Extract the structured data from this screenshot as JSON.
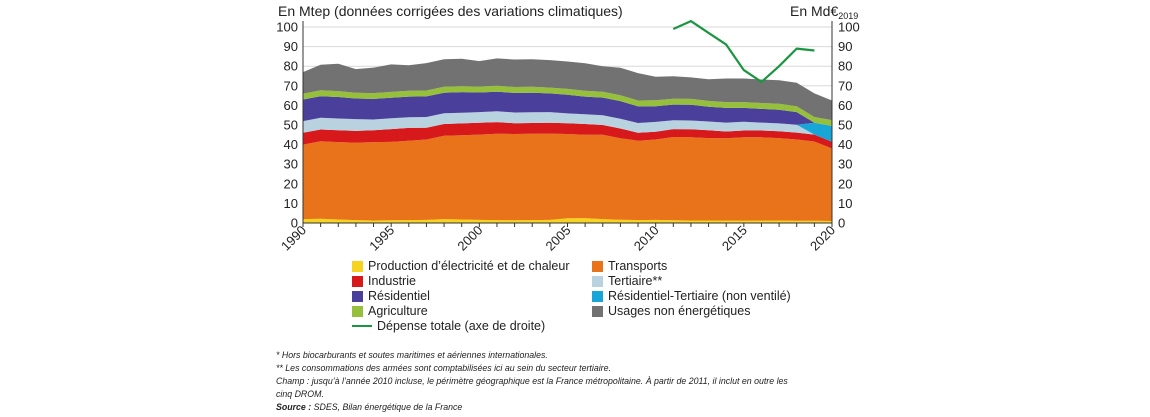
{
  "chart_data": {
    "type": "area",
    "left_axis_label": "En Mtep (données corrigées des variations climatiques)",
    "right_axis_label": "En Md€",
    "right_axis_label_sub": "2019",
    "ylim": [
      0,
      100
    ],
    "y_ticks": [
      "0",
      "10",
      "20",
      "30",
      "40",
      "50",
      "60",
      "70",
      "80",
      "90",
      "100"
    ],
    "x_ticks": [
      "1990",
      "1995",
      "2000",
      "2005",
      "2010",
      "2015",
      "2020"
    ],
    "years": [
      1990,
      1991,
      1992,
      1993,
      1994,
      1995,
      1996,
      1997,
      1998,
      1999,
      2000,
      2001,
      2002,
      2003,
      2004,
      2005,
      2006,
      2007,
      2008,
      2009,
      2010,
      2011,
      2012,
      2013,
      2014,
      2015,
      2016,
      2017,
      2018,
      2019,
      2020
    ],
    "series": [
      {
        "name": "Production d'électricité et de chaleur",
        "color": "#f5d31e",
        "values": [
          2,
          2.2,
          1.8,
          1.5,
          1.3,
          1.4,
          1.5,
          1.6,
          2,
          1.8,
          1.6,
          1.5,
          1.4,
          1.5,
          1.6,
          2.4,
          2.5,
          2,
          1.7,
          1.5,
          1.6,
          1.4,
          1.3,
          1.3,
          1.2,
          1.2,
          1.2,
          1.3,
          1.1,
          1.1,
          1
        ]
      },
      {
        "name": "Transports",
        "color": "#e8731a",
        "values": [
          38,
          39.5,
          39.5,
          39.5,
          40,
          40,
          40.5,
          41,
          42.5,
          43,
          43.5,
          44,
          44,
          44,
          44,
          43,
          42.5,
          43,
          41.5,
          40.5,
          41,
          42.5,
          42.5,
          42,
          42,
          42.5,
          42.5,
          42,
          41.5,
          40.5,
          37
        ]
      },
      {
        "name": "Industrie",
        "color": "#d7191c",
        "values": [
          6,
          6,
          6,
          6,
          6,
          6.5,
          6.5,
          6,
          6,
          6,
          6,
          6,
          5.5,
          5.5,
          5.5,
          5.5,
          5.5,
          5,
          5,
          4,
          4,
          4,
          4,
          4,
          3.5,
          3.5,
          3.5,
          3.5,
          3.5,
          3.5,
          3.5
        ]
      },
      {
        "name": "Tertiaire**",
        "color": "#b8d2e0",
        "values": [
          6,
          6,
          6,
          6,
          5.5,
          5.5,
          5.5,
          5.5,
          5.5,
          5.5,
          5.5,
          5.5,
          5.5,
          5.5,
          5.5,
          5,
          5,
          5,
          5,
          5,
          5,
          4.5,
          4.5,
          4.5,
          4.5,
          4.5,
          4,
          4,
          4,
          0,
          0
        ]
      },
      {
        "name": "Résidentiel-Tertiaire (non ventilé)",
        "color": "#18a6d8",
        "values": [
          0,
          0,
          0,
          0,
          0,
          0,
          0,
          0,
          0,
          0,
          0,
          0,
          0,
          0,
          0,
          0,
          0,
          0,
          0,
          0,
          0,
          0,
          0,
          0,
          0,
          0,
          0,
          0,
          0,
          6,
          8
        ]
      },
      {
        "name": "Résidentiel",
        "color": "#4a3f9b",
        "values": [
          11,
          11,
          11,
          10.5,
          10.5,
          10.5,
          10.5,
          10.5,
          10.5,
          10.5,
          10,
          10,
          10,
          10,
          9.5,
          9.5,
          9,
          9,
          9,
          8.5,
          8,
          8,
          8,
          7.5,
          7.5,
          7,
          7,
          7,
          6.5,
          0,
          0
        ]
      },
      {
        "name": "Agriculture",
        "color": "#96c03c",
        "values": [
          3,
          3,
          3,
          3,
          3,
          3,
          3,
          3,
          3,
          3,
          3,
          3,
          3,
          3,
          3,
          3,
          3,
          3,
          3,
          3,
          3,
          3,
          3,
          3,
          3,
          3,
          3,
          3,
          3,
          3,
          3
        ]
      },
      {
        "name": "Usages non énergétiques",
        "color": "#727272",
        "values": [
          11,
          13,
          14,
          12,
          13,
          14,
          13,
          14,
          14,
          14,
          13,
          14,
          14,
          14,
          14,
          14,
          14,
          13,
          14,
          14,
          12,
          11.5,
          11,
          11,
          12,
          12,
          12,
          12,
          12,
          12,
          10
        ]
      }
    ],
    "line_series": {
      "name": "Dépense totale (axe de droite)",
      "color": "#1a9641",
      "years": [
        2011,
        2012,
        2013,
        2014,
        2015,
        2016,
        2017,
        2018,
        2019
      ],
      "values": [
        99,
        103,
        97,
        91,
        78,
        72,
        80,
        89,
        88
      ]
    }
  },
  "legend": {
    "elec": "Production d’électricité et de chaleur",
    "transports": "Transports",
    "industrie": "Industrie",
    "tertiaire": "Tertiaire**",
    "residentiel": "Résidentiel",
    "rt_nonventile": "Résidentiel-Tertiaire (non ventilé)",
    "agriculture": "Agriculture",
    "non_energetique": "Usages non énergétiques",
    "depense": "Dépense totale (axe de droite)"
  },
  "notes": {
    "n1": "* Hors biocarburants et soutes maritimes et aériennes internationales.",
    "n2": "** Les consommations des armées sont comptabilisées ici au sein du secteur tertiaire.",
    "n3": "Champ : jusqu’à l’année 2010 incluse, le périmètre géographique est la France métropolitaine. À partir de 2011, il inclut en outre les",
    "n4": "cinq DROM.",
    "source_label": "Source :",
    "source_text": " SDES, Bilan énergétique de la France"
  }
}
